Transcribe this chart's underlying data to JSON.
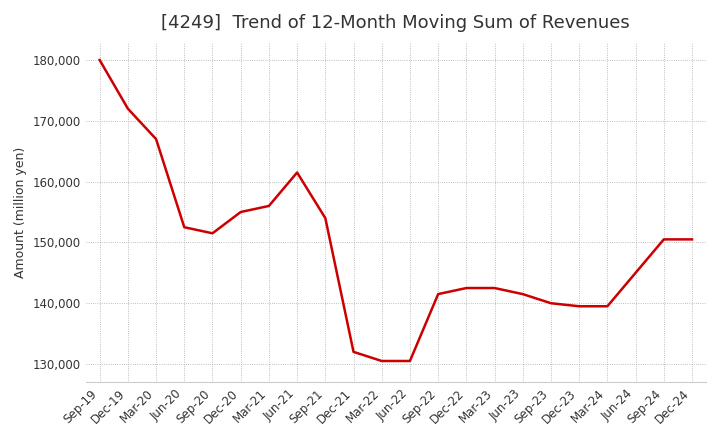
{
  "title": "[4249]  Trend of 12-Month Moving Sum of Revenues",
  "ylabel": "Amount (million yen)",
  "x_labels": [
    "Sep-19",
    "Dec-19",
    "Mar-20",
    "Jun-20",
    "Sep-20",
    "Dec-20",
    "Mar-21",
    "Jun-21",
    "Sep-21",
    "Dec-21",
    "Mar-22",
    "Jun-22",
    "Sep-22",
    "Dec-22",
    "Mar-23",
    "Jun-23",
    "Sep-23",
    "Dec-23",
    "Mar-24",
    "Jun-24",
    "Sep-24",
    "Dec-24"
  ],
  "y_values": [
    180000,
    172000,
    167000,
    152500,
    151500,
    155000,
    156000,
    161500,
    154000,
    132000,
    130500,
    130500,
    141500,
    142500,
    142500,
    141500,
    140000,
    139500,
    139500,
    145000,
    150500,
    150500
  ],
  "ylim": [
    127000,
    183000
  ],
  "yticks": [
    130000,
    140000,
    150000,
    160000,
    170000,
    180000
  ],
  "line_color": "#cc0000",
  "bg_color": "#ffffff",
  "outer_bg_color": "#ffffff",
  "grid_color": "#aaaaaa",
  "title_fontsize": 13,
  "label_fontsize": 9,
  "tick_fontsize": 8.5
}
